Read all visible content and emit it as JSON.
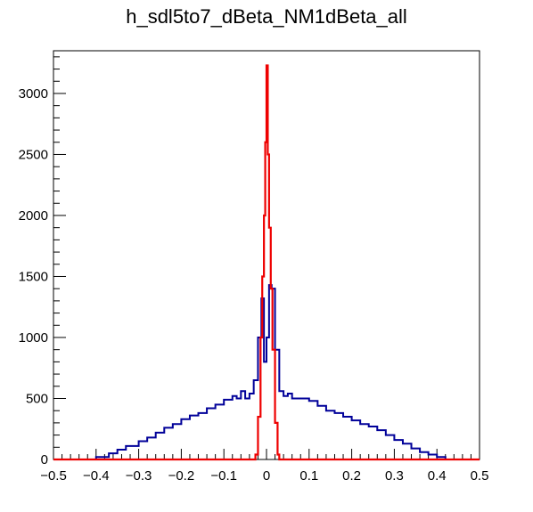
{
  "chart_data": {
    "type": "step",
    "title": "h_sdl5to7_dBeta_NM1dBeta_all",
    "xlabel": "",
    "ylabel": "",
    "xlim": [
      -0.5,
      0.5
    ],
    "ylim": [
      0,
      3350
    ],
    "x_ticks": [
      -0.5,
      -0.4,
      -0.3,
      -0.2,
      -0.1,
      0,
      0.1,
      0.2,
      0.3,
      0.4,
      0.5
    ],
    "x_tick_labels": [
      "−0.5",
      "−0.4",
      "−0.3",
      "−0.2",
      "−0.1",
      "0",
      "0.1",
      "0.2",
      "0.3",
      "0.4",
      "0.5"
    ],
    "y_ticks": [
      0,
      500,
      1000,
      1500,
      2000,
      2500,
      3000
    ],
    "y_tick_labels": [
      "0",
      "500",
      "1000",
      "1500",
      "2000",
      "2500",
      "3000"
    ],
    "grid": false,
    "colors": {
      "series_blue": "#000099",
      "series_red": "#ee0000",
      "frame": "#000000"
    },
    "series": [
      {
        "color": "#000099",
        "points": [
          [
            -0.5,
            0
          ],
          [
            -0.42,
            0
          ],
          [
            -0.4,
            20
          ],
          [
            -0.37,
            50
          ],
          [
            -0.35,
            80
          ],
          [
            -0.33,
            110
          ],
          [
            -0.3,
            150
          ],
          [
            -0.28,
            180
          ],
          [
            -0.26,
            220
          ],
          [
            -0.24,
            260
          ],
          [
            -0.22,
            290
          ],
          [
            -0.2,
            330
          ],
          [
            -0.18,
            360
          ],
          [
            -0.16,
            380
          ],
          [
            -0.14,
            420
          ],
          [
            -0.12,
            450
          ],
          [
            -0.1,
            490
          ],
          [
            -0.08,
            520
          ],
          [
            -0.07,
            500
          ],
          [
            -0.06,
            560
          ],
          [
            -0.05,
            500
          ],
          [
            -0.04,
            540
          ],
          [
            -0.03,
            650
          ],
          [
            -0.02,
            1000
          ],
          [
            -0.012,
            1320
          ],
          [
            -0.006,
            800
          ],
          [
            0,
            1000
          ],
          [
            0.006,
            1430
          ],
          [
            0.012,
            1400
          ],
          [
            0.02,
            900
          ],
          [
            0.03,
            560
          ],
          [
            0.04,
            520
          ],
          [
            0.05,
            540
          ],
          [
            0.06,
            500
          ],
          [
            0.08,
            500
          ],
          [
            0.1,
            480
          ],
          [
            0.12,
            440
          ],
          [
            0.14,
            400
          ],
          [
            0.16,
            380
          ],
          [
            0.18,
            350
          ],
          [
            0.2,
            320
          ],
          [
            0.22,
            290
          ],
          [
            0.24,
            270
          ],
          [
            0.26,
            240
          ],
          [
            0.28,
            200
          ],
          [
            0.3,
            160
          ],
          [
            0.32,
            130
          ],
          [
            0.34,
            90
          ],
          [
            0.36,
            60
          ],
          [
            0.38,
            40
          ],
          [
            0.4,
            20
          ],
          [
            0.42,
            0
          ],
          [
            0.5,
            0
          ]
        ]
      },
      {
        "color": "#ee0000",
        "points": [
          [
            -0.5,
            0
          ],
          [
            -0.03,
            0
          ],
          [
            -0.026,
            40
          ],
          [
            -0.02,
            350
          ],
          [
            -0.014,
            1000
          ],
          [
            -0.01,
            1500
          ],
          [
            -0.006,
            2000
          ],
          [
            -0.003,
            2600
          ],
          [
            0,
            3230
          ],
          [
            0.003,
            2500
          ],
          [
            0.006,
            1900
          ],
          [
            0.01,
            1400
          ],
          [
            0.014,
            900
          ],
          [
            0.02,
            300
          ],
          [
            0.026,
            40
          ],
          [
            0.03,
            0
          ],
          [
            0.5,
            0
          ]
        ]
      }
    ]
  }
}
